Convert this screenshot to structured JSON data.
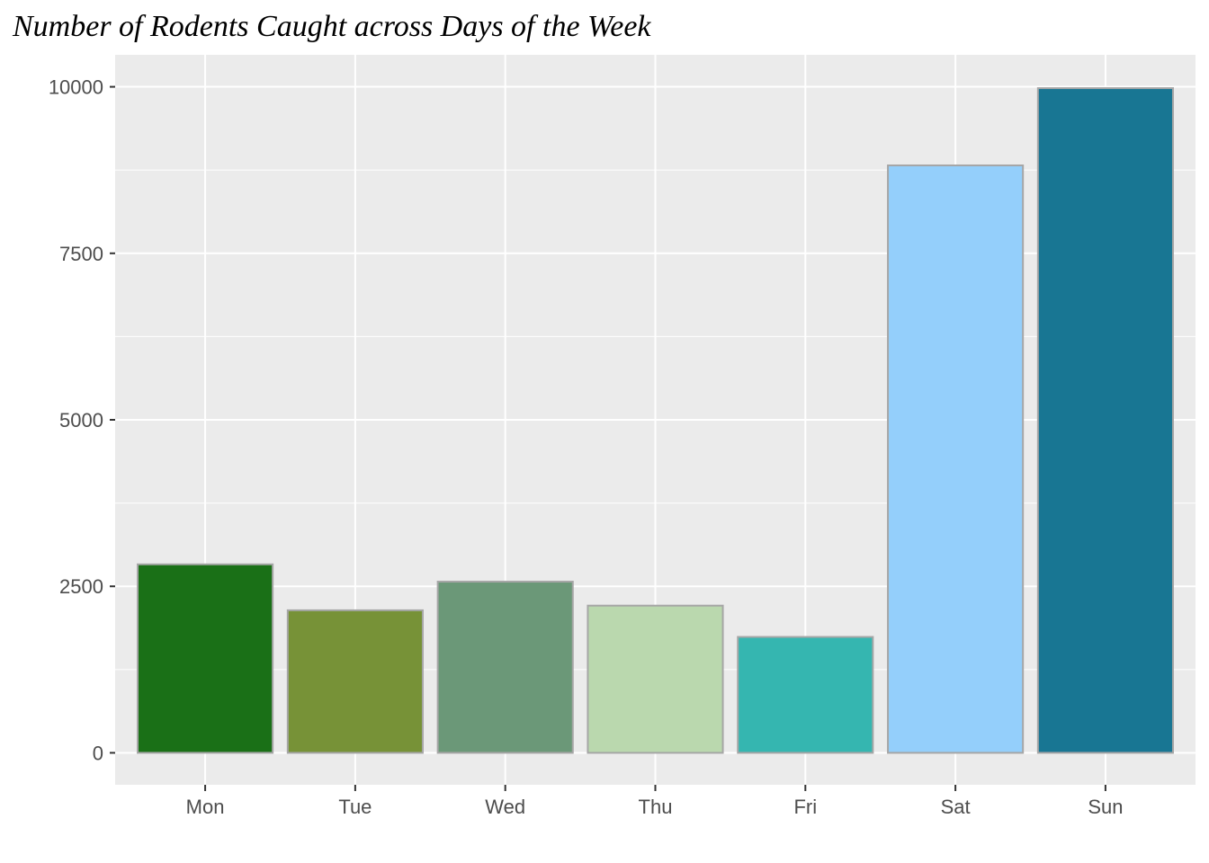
{
  "chart_data": {
    "type": "bar",
    "title": "Number of Rodents Caught across Days of the Week",
    "xlabel": "",
    "ylabel": "",
    "categories": [
      "Mon",
      "Tue",
      "Wed",
      "Thu",
      "Fri",
      "Sat",
      "Sun"
    ],
    "values": [
      2830,
      2140,
      2570,
      2210,
      1740,
      8820,
      9980
    ],
    "colors": [
      "#1a7017",
      "#779237",
      "#6b9878",
      "#bad8ae",
      "#35b6b0",
      "#94cffb",
      "#187693"
    ],
    "bar_outline_color": "#a6a6a6",
    "ylim": [
      -480,
      10480
    ],
    "yticks": [
      0,
      2500,
      5000,
      7500,
      10000
    ],
    "ytick_labels": [
      "0",
      "2500",
      "5000",
      "7500",
      "10000"
    ],
    "panel_background": "#ebebeb",
    "grid": true,
    "grid_color": "#ffffff",
    "legend": "none"
  }
}
